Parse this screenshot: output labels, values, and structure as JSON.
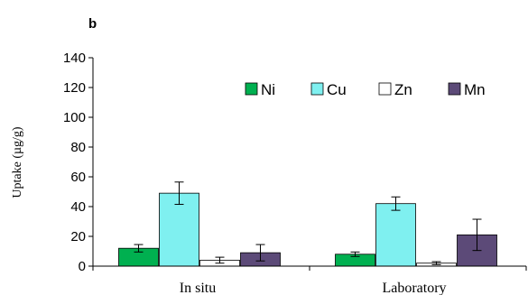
{
  "panel_label": "b",
  "chart_data": {
    "type": "bar",
    "title": "",
    "xlabel": "",
    "ylabel": "Uptake (µg/g)",
    "ylim": [
      0,
      140
    ],
    "yticks": [
      0,
      20,
      40,
      60,
      80,
      100,
      120,
      140
    ],
    "categories": [
      "In situ",
      "Laboratory"
    ],
    "legend_position": "top-right",
    "grid": false,
    "series": [
      {
        "name": "Ni",
        "color": "#00b050",
        "values": [
          12,
          8
        ],
        "errors": [
          2.5,
          1.5
        ]
      },
      {
        "name": "Cu",
        "color": "#7ff0f0",
        "values": [
          49,
          42
        ],
        "errors": [
          7.5,
          4.5
        ]
      },
      {
        "name": "Zn",
        "color": "#ffffff",
        "values": [
          4,
          2
        ],
        "errors": [
          2,
          1
        ]
      },
      {
        "name": "Mn",
        "color": "#5c4a78",
        "values": [
          9,
          21
        ],
        "errors": [
          5.5,
          10.5
        ]
      }
    ]
  }
}
